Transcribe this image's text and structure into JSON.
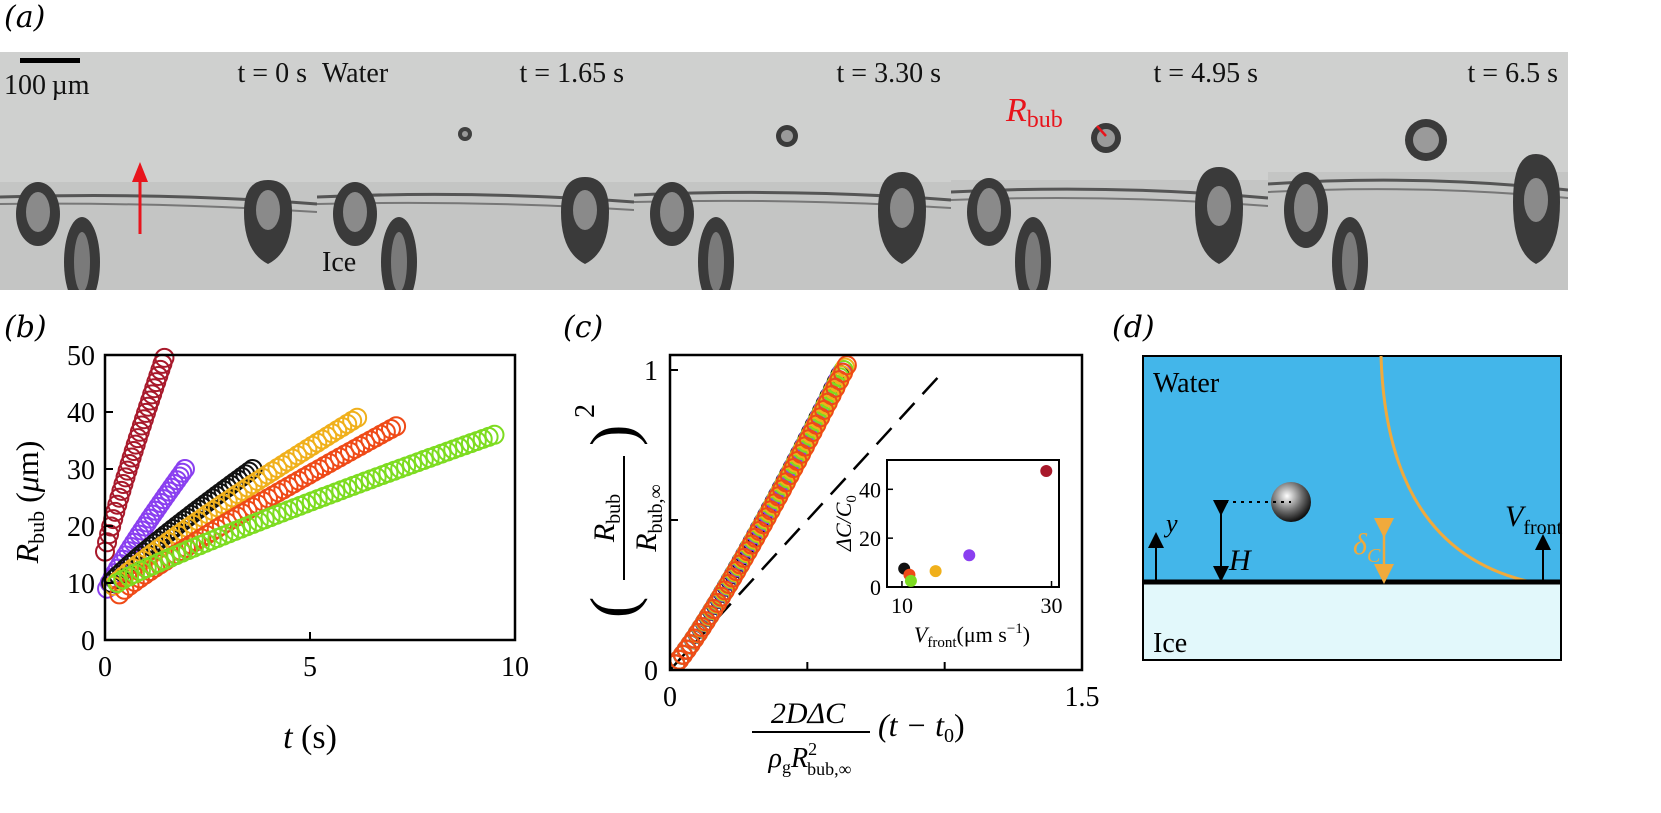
{
  "panel_labels": [
    "(a)",
    "(b)",
    "(c)",
    "(d)"
  ],
  "panel_a": {
    "scale_bar_label": "100 µm",
    "frames": [
      {
        "time": "t = 0 s",
        "label": ""
      },
      {
        "time": "t = 1.65 s",
        "label": "Water",
        "label2": "Ice"
      },
      {
        "time": "t = 3.30 s",
        "label": ""
      },
      {
        "time": "t = 4.95 s",
        "label": ""
      },
      {
        "time": "t = 6.5 s",
        "label": ""
      }
    ],
    "rbub_symbol": "R",
    "rbub_sub": "bub",
    "colors": {
      "arrow": "#e8141c",
      "annotation": "#e8141c"
    }
  },
  "chart_data": [
    {
      "panel": "(b)",
      "type": "scatter",
      "xlabel": "t (s)",
      "ylabel": "R_bub (μm)",
      "xlim": [
        0,
        10
      ],
      "ylim": [
        0,
        50
      ],
      "xticks": [
        "0",
        "5",
        "10"
      ],
      "yticks": [
        "0",
        "10",
        "20",
        "30",
        "40",
        "50"
      ],
      "series": [
        {
          "name": "dark-red",
          "color": "#a8192b",
          "x_start": 0.0,
          "x_end": 1.45,
          "y_start": 15.5,
          "y_end": 49.5,
          "n": 30
        },
        {
          "name": "purple",
          "color": "#8a3ff0",
          "x_start": 0.05,
          "x_end": 1.95,
          "y_start": 9.0,
          "y_end": 30.0,
          "n": 30
        },
        {
          "name": "black",
          "color": "#111111",
          "x_start": 0.15,
          "x_end": 3.6,
          "y_start": 10.0,
          "y_end": 30.0,
          "n": 40
        },
        {
          "name": "yellow",
          "color": "#f0b01b",
          "x_start": 0.2,
          "x_end": 6.15,
          "y_start": 9.5,
          "y_end": 39.0,
          "n": 50
        },
        {
          "name": "orange",
          "color": "#ef4a17",
          "x_start": 0.35,
          "x_end": 7.1,
          "y_start": 8.0,
          "y_end": 37.5,
          "n": 55
        },
        {
          "name": "green",
          "color": "#7ddc20",
          "x_start": 0.3,
          "x_end": 9.5,
          "y_start": 10.0,
          "y_end": 36.0,
          "n": 65
        }
      ]
    },
    {
      "panel": "(c)",
      "type": "scatter",
      "ylabel_num": "R",
      "ylabel_num_sub": "bub",
      "ylabel_den": "R",
      "ylabel_den_sub": "bub,∞",
      "ylabel_exp": "2",
      "xlabel_num": "2DΔC",
      "xlabel_den_rho": "ρ",
      "xlabel_den_rho_sub": "g",
      "xlabel_den_r": "R",
      "xlabel_den_r_sup": "2",
      "xlabel_den_r_sub": "bub,∞",
      "xlabel_tail": "(t − t",
      "xlabel_tail_sub": "0",
      "xlabel_close": ")",
      "xlim": [
        0,
        1.5
      ],
      "ylim": [
        0,
        1.05
      ],
      "xticks": [
        "0",
        "1.5"
      ],
      "yticks": [
        "0",
        "1"
      ],
      "reference_line": {
        "slope": 1.0,
        "style": "dashed",
        "color": "#000000"
      },
      "series_colors": [
        "#111111",
        "#8a3ff0",
        "#7ddc20",
        "#f0b01b",
        "#ef4a17"
      ],
      "inset": {
        "type": "scatter",
        "xlabel": "V",
        "xlabel_sub": "front",
        "xlabel_units": "(μm s",
        "xlabel_units_sup": "−1",
        "xlabel_units_close": ")",
        "ylabel": "ΔC/C",
        "ylabel_sub": "0",
        "xlim": [
          8,
          31
        ],
        "ylim": [
          0,
          52
        ],
        "xticks": [
          "10",
          "30"
        ],
        "yticks": [
          "0",
          "20",
          "40"
        ],
        "points": [
          {
            "x": 10.3,
            "y": 7.5,
            "color": "#111111"
          },
          {
            "x": 11.0,
            "y": 5.0,
            "color": "#ef4a17"
          },
          {
            "x": 11.2,
            "y": 2.5,
            "color": "#7ddc20"
          },
          {
            "x": 14.5,
            "y": 6.5,
            "color": "#f0b01b"
          },
          {
            "x": 19.0,
            "y": 13.0,
            "color": "#8a3ff0"
          },
          {
            "x": 29.3,
            "y": 47.5,
            "color": "#a8192b"
          }
        ]
      }
    }
  ],
  "panel_d": {
    "water_label": "Water",
    "ice_label": "Ice",
    "y_label": "y",
    "h_label": "H",
    "delta_label": "δ",
    "delta_sub": "C",
    "vfront_label": "V",
    "vfront_sub": "front",
    "colors": {
      "water": "#43b6ea",
      "ice": "#e2f8fb",
      "profile": "#f0aa3c",
      "interface": "#000000"
    }
  }
}
